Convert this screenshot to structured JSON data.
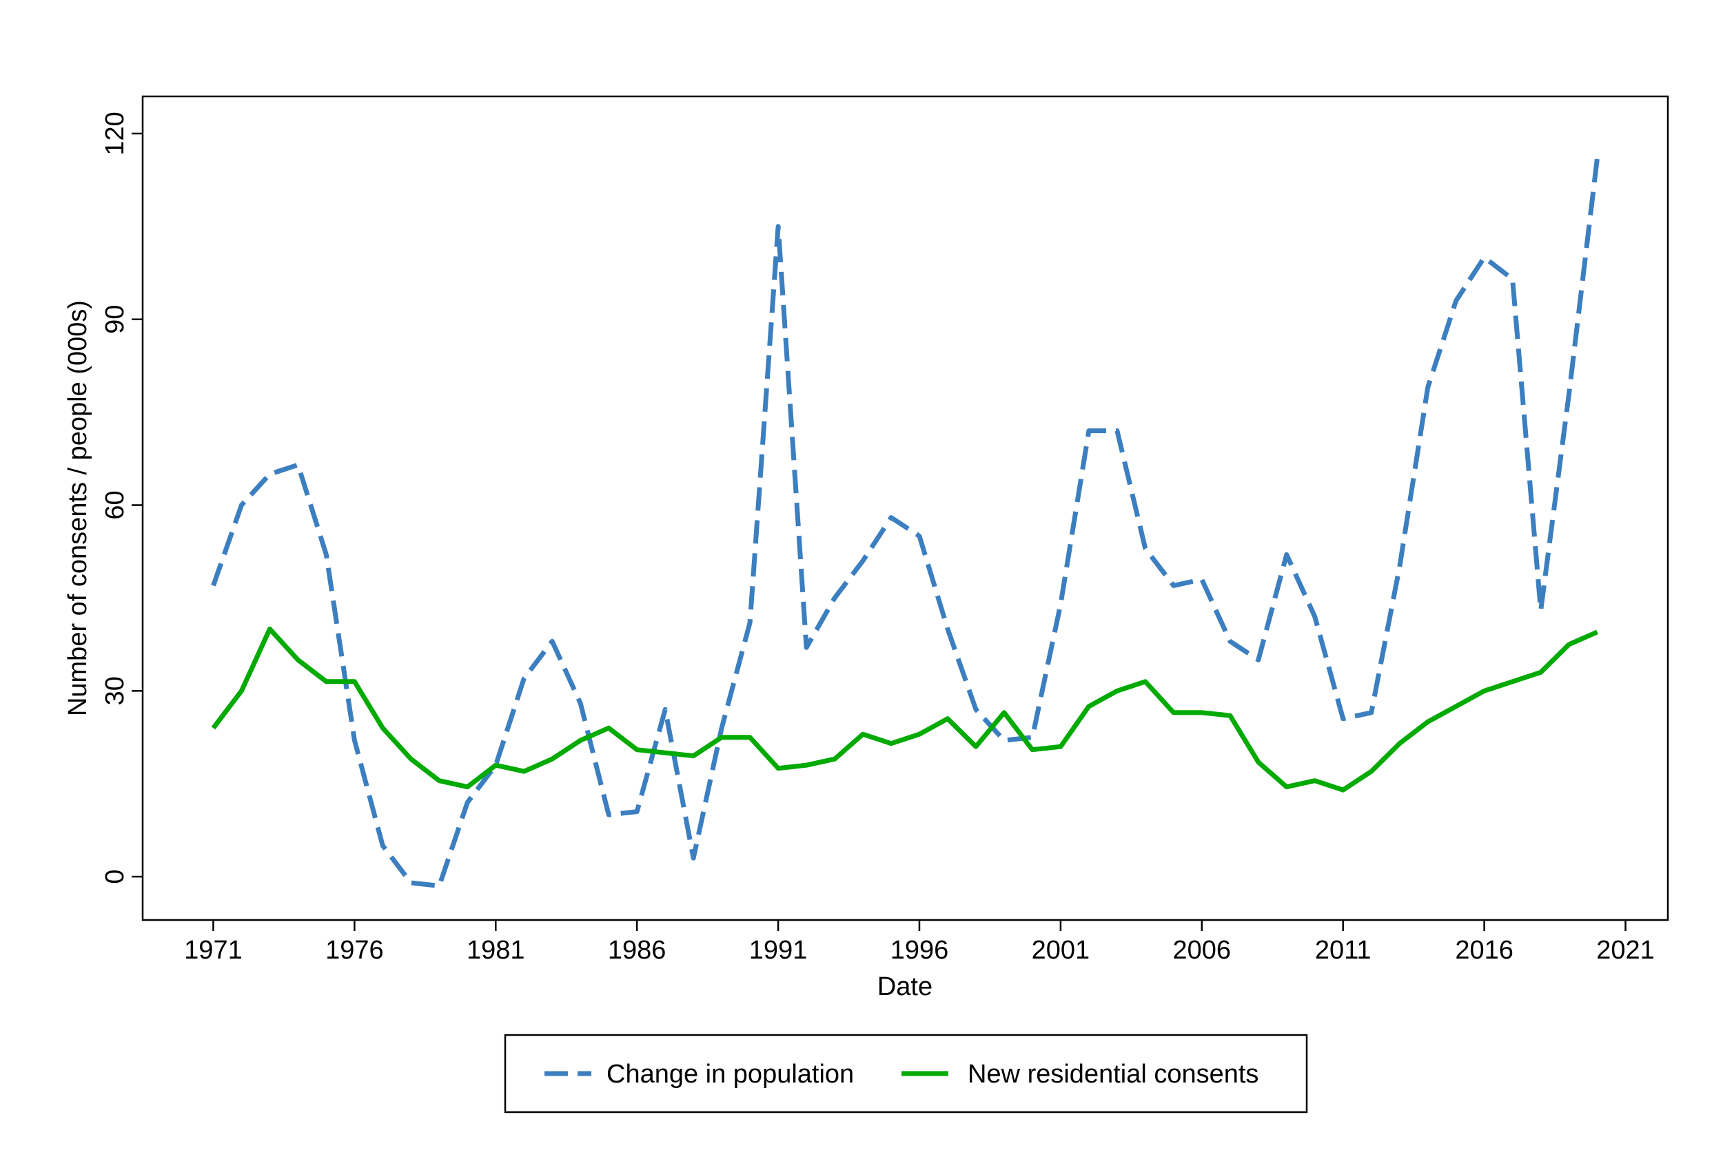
{
  "chart_data": {
    "type": "line",
    "title": "",
    "xlabel": "Date",
    "ylabel": "Number of consents / people (000s)",
    "xlim": [
      1968.5,
      2022.5
    ],
    "ylim": [
      -7,
      126
    ],
    "x_ticks": [
      1971,
      1976,
      1981,
      1986,
      1991,
      1996,
      2001,
      2006,
      2011,
      2016,
      2021
    ],
    "y_ticks": [
      0,
      30,
      60,
      90,
      120
    ],
    "grid": false,
    "legend_position": "bottom",
    "series": [
      {
        "name": "Change in population",
        "color": "#3c7fc0",
        "style": "dashed",
        "points": [
          [
            1971,
            47
          ],
          [
            1972,
            60
          ],
          [
            1973,
            65
          ],
          [
            1974,
            66.5
          ],
          [
            1975,
            52
          ],
          [
            1976,
            22
          ],
          [
            1977,
            5
          ],
          [
            1978,
            -1
          ],
          [
            1979,
            -1.5
          ],
          [
            1980,
            12
          ],
          [
            1981,
            18
          ],
          [
            1982,
            32
          ],
          [
            1983,
            38
          ],
          [
            1984,
            28
          ],
          [
            1985,
            10
          ],
          [
            1986,
            10.5
          ],
          [
            1987,
            27
          ],
          [
            1988,
            3
          ],
          [
            1989,
            24
          ],
          [
            1990,
            41
          ],
          [
            1991,
            105
          ],
          [
            1992,
            37
          ],
          [
            1993,
            45
          ],
          [
            1994,
            51
          ],
          [
            1995,
            58
          ],
          [
            1996,
            55
          ],
          [
            1997,
            40
          ],
          [
            1998,
            27
          ],
          [
            1999,
            22
          ],
          [
            2000,
            22.5
          ],
          [
            2001,
            44
          ],
          [
            2002,
            72
          ],
          [
            2003,
            72
          ],
          [
            2004,
            53
          ],
          [
            2005,
            47
          ],
          [
            2006,
            48
          ],
          [
            2007,
            38
          ],
          [
            2008,
            35
          ],
          [
            2009,
            52
          ],
          [
            2010,
            42
          ],
          [
            2011,
            25.5
          ],
          [
            2012,
            26.5
          ],
          [
            2013,
            50
          ],
          [
            2014,
            79
          ],
          [
            2015,
            93
          ],
          [
            2016,
            100
          ],
          [
            2017,
            96.5
          ],
          [
            2018,
            43
          ],
          [
            2019,
            78
          ],
          [
            2020,
            116
          ]
        ]
      },
      {
        "name": "New residential consents",
        "color": "#00aa00",
        "style": "solid",
        "points": [
          [
            1971,
            24
          ],
          [
            1972,
            30
          ],
          [
            1973,
            40
          ],
          [
            1974,
            35
          ],
          [
            1975,
            31.5
          ],
          [
            1976,
            31.5
          ],
          [
            1977,
            24
          ],
          [
            1978,
            19
          ],
          [
            1979,
            15.5
          ],
          [
            1980,
            14.5
          ],
          [
            1981,
            18
          ],
          [
            1982,
            17
          ],
          [
            1983,
            19
          ],
          [
            1984,
            22
          ],
          [
            1985,
            24
          ],
          [
            1986,
            20.5
          ],
          [
            1987,
            20
          ],
          [
            1988,
            19.5
          ],
          [
            1989,
            22.5
          ],
          [
            1990,
            22.5
          ],
          [
            1991,
            17.5
          ],
          [
            1992,
            18
          ],
          [
            1993,
            19
          ],
          [
            1994,
            23
          ],
          [
            1995,
            21.5
          ],
          [
            1996,
            23
          ],
          [
            1997,
            25.5
          ],
          [
            1998,
            21
          ],
          [
            1999,
            26.5
          ],
          [
            2000,
            20.5
          ],
          [
            2001,
            21
          ],
          [
            2002,
            27.5
          ],
          [
            2003,
            30
          ],
          [
            2004,
            31.5
          ],
          [
            2005,
            26.5
          ],
          [
            2006,
            26.5
          ],
          [
            2007,
            26
          ],
          [
            2008,
            18.5
          ],
          [
            2009,
            14.5
          ],
          [
            2010,
            15.5
          ],
          [
            2011,
            14
          ],
          [
            2012,
            17
          ],
          [
            2013,
            21.5
          ],
          [
            2014,
            25
          ],
          [
            2015,
            27.5
          ],
          [
            2016,
            30
          ],
          [
            2017,
            31.5
          ],
          [
            2018,
            33
          ],
          [
            2019,
            37.5
          ],
          [
            2020,
            39.5
          ]
        ]
      }
    ]
  }
}
